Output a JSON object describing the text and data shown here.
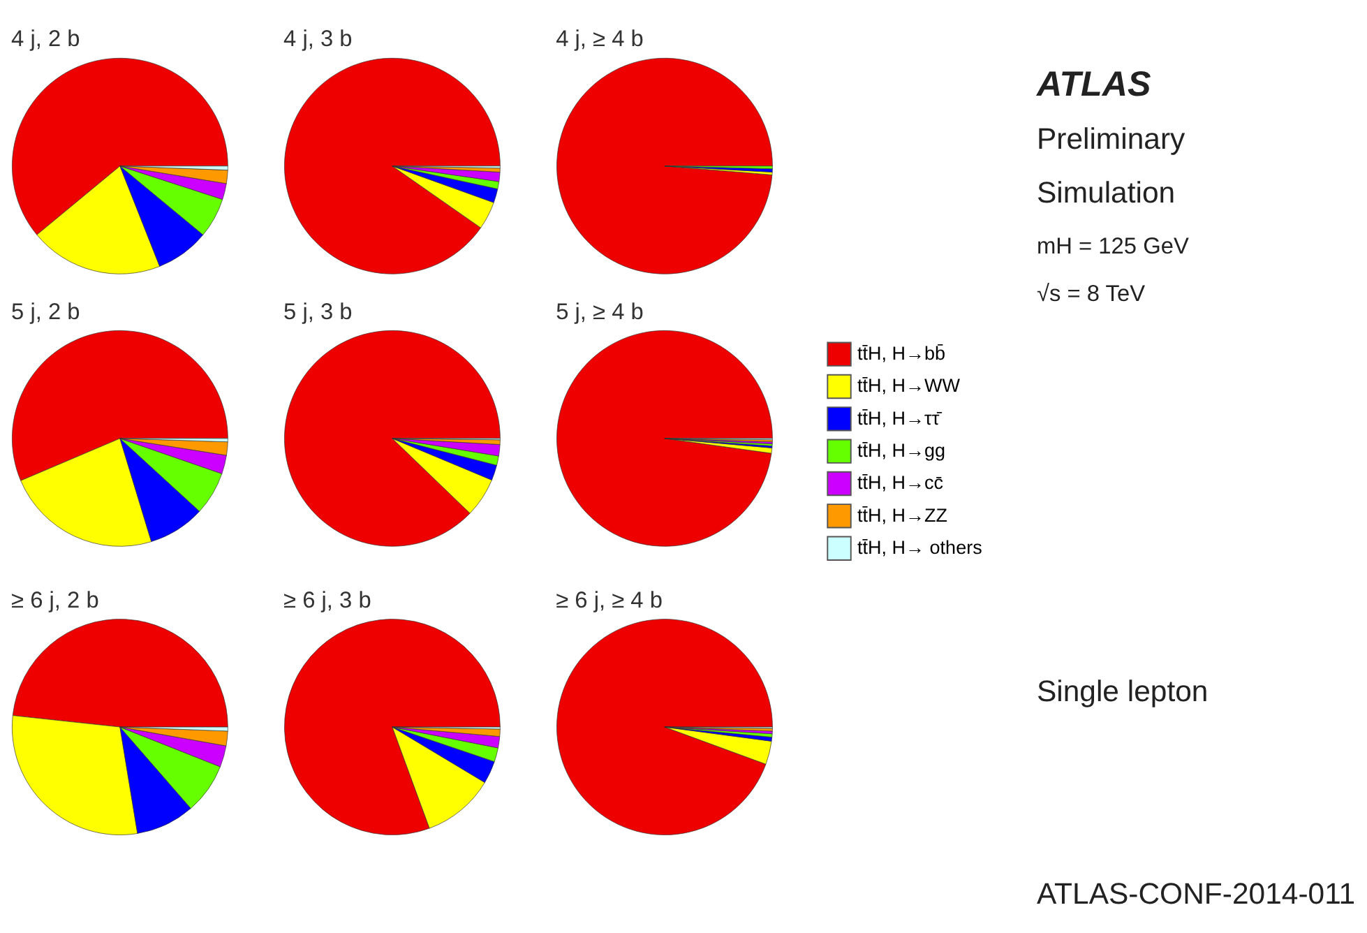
{
  "chart_data": [
    {
      "type": "pie",
      "title": "4 j, 2 b",
      "categories": [
        null,
        null,
        null,
        null,
        null,
        null,
        null
      ],
      "values": [
        61,
        20,
        8,
        6,
        2.4,
        2,
        0.6
      ],
      "colors": [
        "#ee0000",
        "#ffff00",
        "#0000ff",
        "#66ff00",
        "#cc00ff",
        "#ff9900",
        "#ccffff"
      ]
    },
    {
      "type": "pie",
      "title": "4 j, 3 b",
      "categories": [
        null,
        null,
        null,
        null,
        null,
        null,
        null
      ],
      "values": [
        90.3,
        4.2,
        2.1,
        1.1,
        1.4,
        0.6,
        0.3
      ],
      "colors": [
        "#ee0000",
        "#ffff00",
        "#0000ff",
        "#66ff00",
        "#cc00ff",
        "#ff9900",
        "#ccffff"
      ]
    },
    {
      "type": "pie",
      "title": "4 j, ≥ 4 b",
      "categories": [
        null,
        null,
        null,
        null,
        null,
        null,
        null
      ],
      "values": [
        98.7,
        0.4,
        0.5,
        0.4,
        null,
        null,
        null
      ],
      "colors": [
        "#ee0000",
        "#ffff00",
        "#0000ff",
        "#66ff00",
        "#cc00ff",
        "#ff9900",
        "#ccffff"
      ]
    },
    {
      "type": "pie",
      "title": "5 j, 2 b",
      "categories": [
        null,
        null,
        null,
        null,
        null,
        null,
        null
      ],
      "values": [
        56.4,
        23.3,
        8.5,
        6.5,
        2.8,
        2,
        0.5
      ],
      "colors": [
        "#ee0000",
        "#ffff00",
        "#0000ff",
        "#66ff00",
        "#cc00ff",
        "#ff9900",
        "#ccffff"
      ]
    },
    {
      "type": "pie",
      "title": "5 j, 3 b",
      "categories": [
        null,
        null,
        null,
        null,
        null,
        null,
        null
      ],
      "values": [
        87.8,
        5.9,
        2.3,
        1.4,
        1.7,
        0.7,
        0.2
      ],
      "colors": [
        "#ee0000",
        "#ffff00",
        "#0000ff",
        "#66ff00",
        "#cc00ff",
        "#ff9900",
        "#ccffff"
      ]
    },
    {
      "type": "pie",
      "title": "5 j, ≥ 4 b",
      "legend": "right",
      "categories": [
        "tt̄H, H→bb̄",
        "tt̄H, H→WW",
        "tt̄H, H→ττ̄",
        "tt̄H, H→gg",
        "tt̄H, H→cc̄",
        "tt̄H, H→ZZ",
        "tt̄H, H→ others"
      ],
      "values": [
        97.8,
        0.8,
        0.3,
        0.3,
        0.3,
        0.3,
        0.2
      ],
      "colors": [
        "#ee0000",
        "#ffff00",
        "#0000ff",
        "#66ff00",
        "#cc00ff",
        "#ff9900",
        "#ccffff"
      ]
    },
    {
      "type": "pie",
      "title": "≥ 6 j, 2 b",
      "categories": [
        null,
        null,
        null,
        null,
        null,
        null,
        null
      ],
      "values": [
        48.3,
        29.3,
        8.8,
        7.6,
        3.2,
        2.2,
        0.6
      ],
      "colors": [
        "#ee0000",
        "#ffff00",
        "#0000ff",
        "#66ff00",
        "#cc00ff",
        "#ff9900",
        "#ccffff"
      ]
    },
    {
      "type": "pie",
      "title": "≥ 6 j, 3 b",
      "categories": [
        null,
        null,
        null,
        null,
        null,
        null,
        null
      ],
      "values": [
        80.6,
        10.8,
        3.4,
        2.1,
        1.7,
        1.1,
        0.3
      ],
      "colors": [
        "#ee0000",
        "#ffff00",
        "#0000ff",
        "#66ff00",
        "#cc00ff",
        "#ff9900",
        "#ccffff"
      ]
    },
    {
      "type": "pie",
      "title": "≥ 6 j, ≥ 4 b",
      "categories": [
        null,
        null,
        null,
        null,
        null,
        null,
        null
      ],
      "values": [
        94.4,
        3.5,
        0.6,
        0.5,
        0.4,
        0.4,
        0.2
      ],
      "colors": [
        "#ee0000",
        "#ffff00",
        "#0000ff",
        "#66ff00",
        "#cc00ff",
        "#ff9900",
        "#ccffff"
      ]
    },
    {
      "type": "other",
      "title": "ATLAS",
      "annotations": [
        "Preliminary",
        "Simulation",
        "mH = 125 GeV",
        "√s = 8 TeV",
        "Single lepton",
        "ATLAS-CONF-2014-011"
      ]
    }
  ]
}
